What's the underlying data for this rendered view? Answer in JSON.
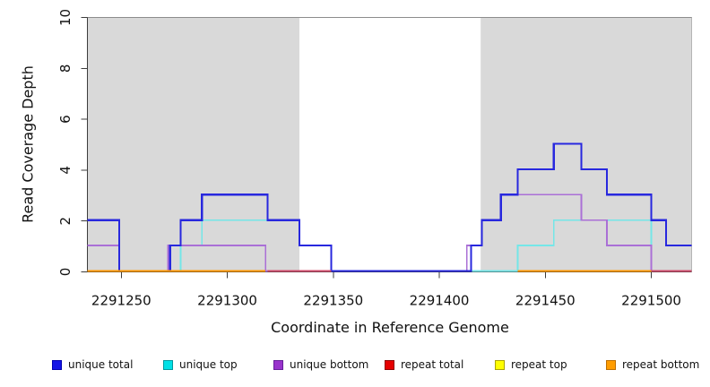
{
  "figure": {
    "title": "",
    "y_axis_label": "Read Coverage Depth",
    "x_axis_label": "Coordinate in Reference Genome"
  },
  "chart_data": {
    "type": "line",
    "subtype": "step-coverage",
    "title": "",
    "xlabel": "Coordinate in Reference Genome",
    "ylabel": "Read Coverage Depth",
    "xlim": [
      2291234,
      2291519
    ],
    "ylim": [
      0,
      10
    ],
    "x_ticks": [
      2291250,
      2291300,
      2291350,
      2291400,
      2291450,
      2291500
    ],
    "y_ticks": [
      0,
      2,
      4,
      6,
      8,
      10
    ],
    "grid": false,
    "legend_position": "bottom",
    "background_regions": [
      {
        "name": "shaded-region-left",
        "from": 2291234,
        "to": 2291334,
        "color": "#d9d9d9"
      },
      {
        "name": "shaded-region-right",
        "from": 2291419.5,
        "to": 2291519,
        "color": "#d9d9d9"
      }
    ],
    "draw_order": [
      "unique top",
      "unique bottom",
      "unique total",
      "repeat total",
      "repeat top",
      "repeat bottom"
    ],
    "series": [
      {
        "name": "unique total",
        "line_color": "#2828de",
        "line_width": 2.2,
        "legend_fill": "#1414e6",
        "legend_border": "#0000b0",
        "segments": [
          {
            "points": [
              [
                2291234,
                2
              ],
              [
                2291249,
                0
              ],
              [
                2291273,
                1
              ],
              [
                2291278,
                2
              ],
              [
                2291288,
                3
              ],
              [
                2291319,
                2
              ],
              [
                2291334,
                1
              ],
              [
                2291349,
                0
              ],
              [
                2291415,
                1
              ],
              [
                2291420,
                2
              ],
              [
                2291429,
                3
              ],
              [
                2291437,
                4
              ],
              [
                2291454,
                5
              ],
              [
                2291467,
                4
              ],
              [
                2291479,
                3
              ],
              [
                2291500,
                2
              ],
              [
                2291507,
                1
              ]
            ],
            "end": 2291519
          }
        ]
      },
      {
        "name": "unique top",
        "line_color": "#74e6e8",
        "line_width": 1.8,
        "legend_fill": "#00e0e6",
        "legend_border": "#00989e",
        "segments": [
          {
            "points": [
              [
                2291234,
                1
              ],
              [
                2291249,
                0
              ],
              [
                2291278,
                1
              ],
              [
                2291288,
                2
              ],
              [
                2291334,
                1
              ],
              [
                2291349,
                0
              ],
              [
                2291437,
                1
              ],
              [
                2291454,
                2
              ],
              [
                2291500,
                0
              ]
            ],
            "end": 2291519
          }
        ]
      },
      {
        "name": "unique bottom",
        "line_color": "#aa70d6",
        "line_width": 1.8,
        "legend_fill": "#9933cc",
        "legend_border": "#661f99",
        "segments": [
          {
            "points": [
              [
                2291234,
                1
              ],
              [
                2291249,
                0
              ],
              [
                2291272,
                1
              ],
              [
                2291318,
                0
              ],
              [
                2291413,
                1
              ],
              [
                2291420,
                2
              ],
              [
                2291429,
                3
              ],
              [
                2291467,
                2
              ],
              [
                2291479,
                1
              ],
              [
                2291500,
                0
              ]
            ],
            "end": 2291519
          }
        ]
      },
      {
        "name": "repeat total",
        "line_color": "#d04a6a",
        "line_width": 1.8,
        "legend_fill": "#e60000",
        "legend_border": "#8f0000",
        "segments": [
          {
            "points": [
              [
                2291319,
                0
              ]
            ],
            "end": 2291349
          },
          {
            "points": [
              [
                2291500,
                0
              ]
            ],
            "end": 2291519
          }
        ]
      },
      {
        "name": "repeat top",
        "line_color": "#e8e800",
        "line_width": 1.8,
        "legend_fill": "#ffff00",
        "legend_border": "#aba300",
        "segments": [
          {
            "points": [
              [
                2291234,
                0
              ]
            ],
            "end": 2291318
          },
          {
            "points": [
              [
                2291437,
                0
              ]
            ],
            "end": 2291500
          }
        ]
      },
      {
        "name": "repeat bottom",
        "line_color": "#ff9800",
        "line_width": 1.8,
        "legend_fill": "#ff9d00",
        "legend_border": "#bd6e00",
        "segments": [
          {
            "points": [
              [
                2291234,
                0
              ]
            ],
            "end": 2291318
          },
          {
            "points": [
              [
                2291437,
                0
              ]
            ],
            "end": 2291500
          }
        ]
      }
    ]
  }
}
